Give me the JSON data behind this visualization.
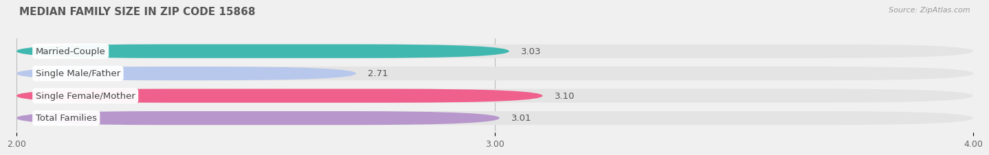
{
  "title": "MEDIAN FAMILY SIZE IN ZIP CODE 15868",
  "source": "Source: ZipAtlas.com",
  "categories": [
    "Married-Couple",
    "Single Male/Father",
    "Single Female/Mother",
    "Total Families"
  ],
  "values": [
    3.03,
    2.71,
    3.1,
    3.01
  ],
  "bar_colors": [
    "#40b8b0",
    "#b8c8ec",
    "#f0608c",
    "#b898cc"
  ],
  "bar_bg_color": "#e4e4e4",
  "xlim": [
    2.0,
    4.0
  ],
  "xticks": [
    2.0,
    3.0,
    4.0
  ],
  "xtick_labels": [
    "2.00",
    "3.00",
    "4.00"
  ],
  "background_color": "#f0f0f0",
  "label_color": "#666666",
  "value_color": "#555555",
  "title_color": "#555555",
  "bar_height": 0.62,
  "label_fontsize": 9.5,
  "value_fontsize": 9.5,
  "title_fontsize": 11
}
